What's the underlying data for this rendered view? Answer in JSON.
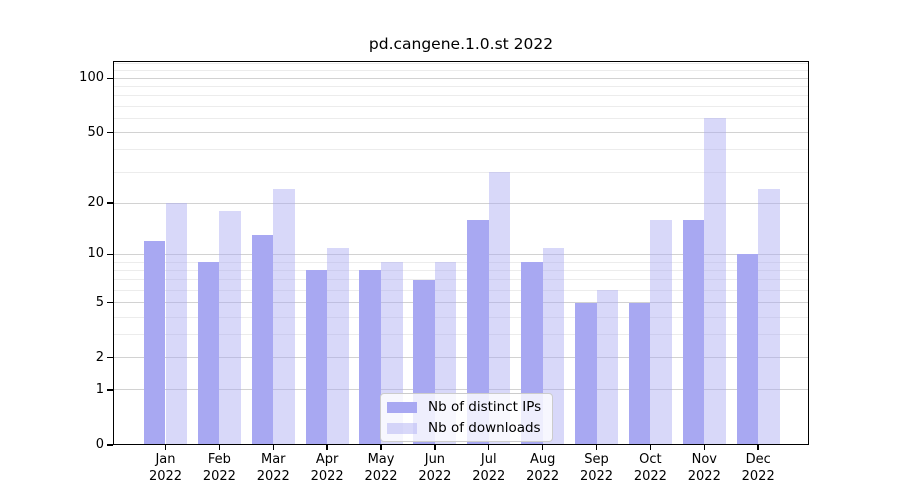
{
  "chart_data": {
    "type": "bar",
    "title": "pd.cangene.1.0.st 2022",
    "categories": [
      "Jan",
      "Feb",
      "Mar",
      "Apr",
      "May",
      "Jun",
      "Jul",
      "Aug",
      "Sep",
      "Oct",
      "Nov",
      "Dec"
    ],
    "category_year": "2022",
    "series": [
      {
        "name": "Nb of distinct IPs",
        "color": "#a8a8f2",
        "values": [
          12,
          9,
          13,
          8,
          8,
          7,
          16,
          9,
          5,
          5,
          16,
          10
        ]
      },
      {
        "name": "Nb of downloads",
        "color": "rgba(168,168,242,0.45)",
        "values": [
          20,
          18,
          24,
          11,
          9,
          9,
          30,
          11,
          6,
          16,
          60,
          24
        ]
      }
    ],
    "scale": "log1p",
    "ylim": [
      0,
      125
    ],
    "y_ticks": [
      0,
      1,
      2,
      5,
      10,
      20,
      50,
      100
    ],
    "y_minor_ticks": [
      3,
      4,
      6,
      7,
      8,
      9,
      30,
      40,
      60,
      70,
      80,
      90,
      110,
      120
    ],
    "xlabel": "",
    "ylabel": "",
    "grid": true,
    "legend_position": "bottom-center",
    "colors": {
      "background": "#ffffff",
      "major_grid": "#d2d2d2",
      "minor_grid": "#ececec",
      "spine": "#000000",
      "tick_text": "#000000",
      "legend_bg": "rgba(255,255,255,0.8)",
      "legend_border": "#cccccc"
    }
  }
}
